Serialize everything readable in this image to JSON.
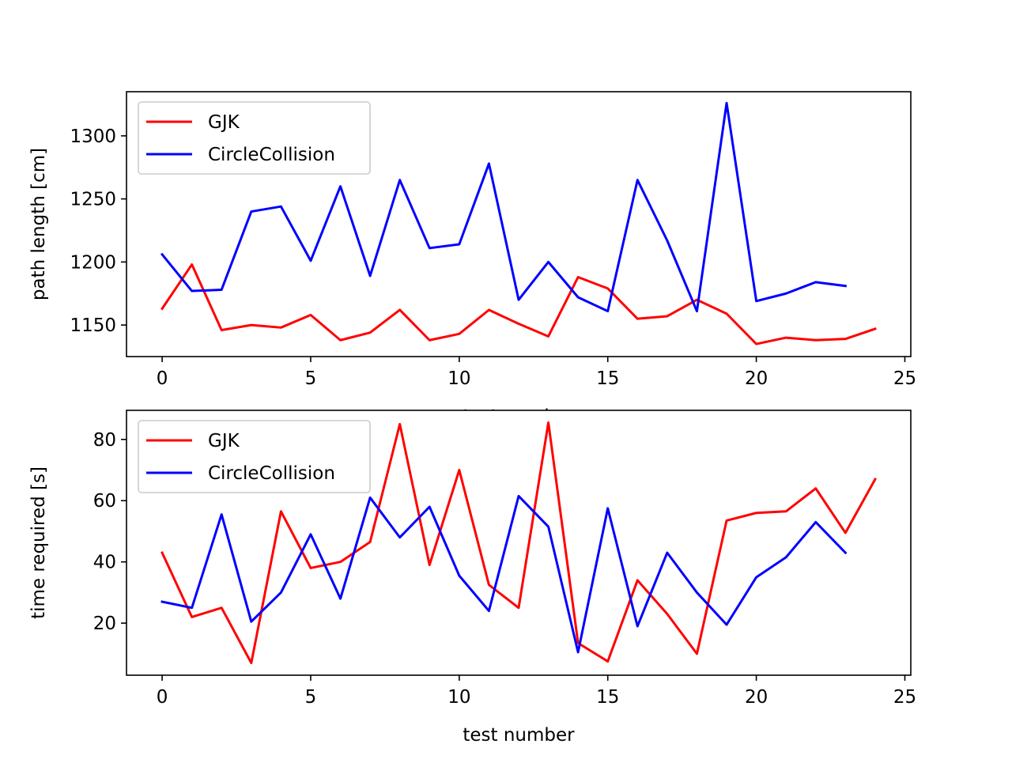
{
  "chart_data": [
    {
      "type": "line",
      "title": "",
      "xlabel": "test number",
      "ylabel": "path length [cm]",
      "xlim": [
        -1.2,
        25.2
      ],
      "ylim": [
        1125,
        1335
      ],
      "xticks": [
        0,
        5,
        10,
        15,
        20,
        25
      ],
      "yticks": [
        1150,
        1200,
        1250,
        1300
      ],
      "grid": false,
      "legend": "upper-left",
      "series": [
        {
          "name": "GJK",
          "color": "#ff0000",
          "x": [
            0,
            1,
            2,
            3,
            4,
            5,
            6,
            7,
            8,
            9,
            10,
            11,
            12,
            13,
            14,
            15,
            16,
            17,
            18,
            19,
            20,
            21,
            22,
            23,
            24
          ],
          "values": [
            1163,
            1198,
            1146,
            1150,
            1148,
            1158,
            1138,
            1144,
            1162,
            1138,
            1143,
            1162,
            1151,
            1141,
            1188,
            1179,
            1155,
            1157,
            1170,
            1159,
            1135,
            1140,
            1138,
            1139,
            1147
          ]
        },
        {
          "name": "CircleCollision",
          "color": "#0000ff",
          "x": [
            0,
            1,
            2,
            3,
            4,
            5,
            6,
            7,
            8,
            9,
            10,
            11,
            12,
            13,
            14,
            15,
            16,
            17,
            18,
            19,
            20,
            21,
            22,
            23
          ],
          "values": [
            1206,
            1177,
            1178,
            1240,
            1244,
            1201,
            1260,
            1189,
            1265,
            1211,
            1214,
            1278,
            1170,
            1200,
            1172,
            1161,
            1265,
            1217,
            1161,
            1326,
            1169,
            1175,
            1184,
            1181
          ]
        }
      ]
    },
    {
      "type": "line",
      "title": "",
      "xlabel": "test number",
      "ylabel": "time required [s]",
      "xlim": [
        -1.2,
        25.2
      ],
      "ylim": [
        3,
        89.5
      ],
      "xticks": [
        0,
        5,
        10,
        15,
        20,
        25
      ],
      "yticks": [
        20,
        40,
        60,
        80
      ],
      "grid": false,
      "legend": "upper-left",
      "series": [
        {
          "name": "GJK",
          "color": "#ff0000",
          "x": [
            0,
            1,
            2,
            3,
            4,
            5,
            6,
            7,
            8,
            9,
            10,
            11,
            12,
            13,
            14,
            15,
            16,
            17,
            18,
            19,
            20,
            21,
            22,
            23,
            24
          ],
          "values": [
            43,
            22,
            25,
            7,
            56.5,
            38,
            40,
            46.5,
            85,
            39,
            70,
            32.5,
            25,
            85.5,
            13.5,
            7.5,
            34,
            23,
            10,
            53.5,
            56,
            56.5,
            64,
            49.5,
            67
          ]
        },
        {
          "name": "CircleCollision",
          "color": "#0000ff",
          "x": [
            0,
            1,
            2,
            3,
            4,
            5,
            6,
            7,
            8,
            9,
            10,
            11,
            12,
            13,
            14,
            15,
            16,
            17,
            18,
            19,
            20,
            21,
            22,
            23
          ],
          "values": [
            27,
            25,
            55.5,
            20.5,
            30,
            49,
            28,
            61,
            48,
            58,
            35.5,
            24,
            61.5,
            51.5,
            10.5,
            57.5,
            19,
            43,
            30,
            19.5,
            35,
            41.5,
            53,
            43
          ]
        }
      ]
    }
  ]
}
